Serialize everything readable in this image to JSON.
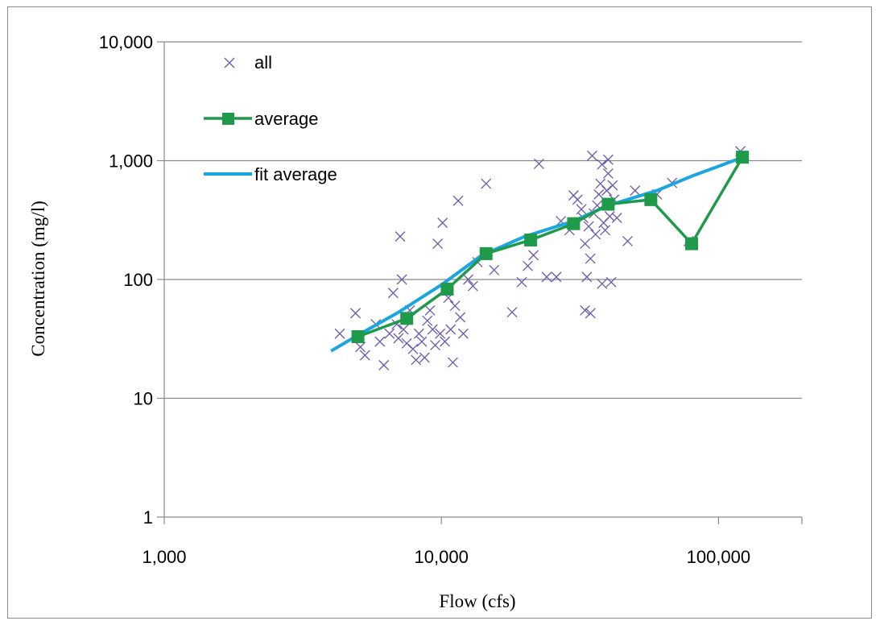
{
  "chart_data": {
    "type": "scatter",
    "xlabel": "Flow (cfs)",
    "ylabel": "Concentration (mg/l)",
    "x_scale": "log",
    "y_scale": "log",
    "xlim": [
      1000,
      200000
    ],
    "ylim": [
      1,
      10000
    ],
    "x_ticks": [
      {
        "value": 1000,
        "label": "1,000"
      },
      {
        "value": 10000,
        "label": "10,000"
      },
      {
        "value": 100000,
        "label": "100,000"
      }
    ],
    "y_ticks": [
      {
        "value": 1,
        "label": "1"
      },
      {
        "value": 10,
        "label": "10"
      },
      {
        "value": 100,
        "label": "100"
      },
      {
        "value": 1000,
        "label": "1,000"
      },
      {
        "value": 10000,
        "label": "10,000"
      }
    ],
    "grid": "horizontal",
    "legend_position": "top-left",
    "series": [
      {
        "name": "all",
        "kind": "scatter",
        "marker": "x",
        "color": "#6a5aad",
        "points": [
          [
            4300,
            35
          ],
          [
            4900,
            52
          ],
          [
            5100,
            27
          ],
          [
            5300,
            23
          ],
          [
            5800,
            42
          ],
          [
            6000,
            30
          ],
          [
            6200,
            19
          ],
          [
            6500,
            35
          ],
          [
            6700,
            77
          ],
          [
            6900,
            42
          ],
          [
            7000,
            32
          ],
          [
            7100,
            230
          ],
          [
            7200,
            100
          ],
          [
            7300,
            38
          ],
          [
            7500,
            29
          ],
          [
            7700,
            55
          ],
          [
            7900,
            26
          ],
          [
            8100,
            21
          ],
          [
            8300,
            35
          ],
          [
            8500,
            30
          ],
          [
            8700,
            22
          ],
          [
            8900,
            45
          ],
          [
            9100,
            55
          ],
          [
            9300,
            38
          ],
          [
            9500,
            28
          ],
          [
            9700,
            200
          ],
          [
            9900,
            35
          ],
          [
            10100,
            300
          ],
          [
            10300,
            30
          ],
          [
            10600,
            70
          ],
          [
            10800,
            38
          ],
          [
            11000,
            20
          ],
          [
            11200,
            60
          ],
          [
            11500,
            460
          ],
          [
            11700,
            48
          ],
          [
            12000,
            35
          ],
          [
            12500,
            100
          ],
          [
            13000,
            88
          ],
          [
            13500,
            140
          ],
          [
            14500,
            640
          ],
          [
            15500,
            120
          ],
          [
            18000,
            53
          ],
          [
            19500,
            95
          ],
          [
            20500,
            130
          ],
          [
            21500,
            160
          ],
          [
            22500,
            940
          ],
          [
            24000,
            105
          ],
          [
            26000,
            105
          ],
          [
            27000,
            310
          ],
          [
            29000,
            260
          ],
          [
            30000,
            510
          ],
          [
            31000,
            470
          ],
          [
            32000,
            390
          ],
          [
            32500,
            330
          ],
          [
            33000,
            200
          ],
          [
            33500,
            105
          ],
          [
            34000,
            280
          ],
          [
            34500,
            150
          ],
          [
            35000,
            1100
          ],
          [
            35500,
            360
          ],
          [
            36000,
            240
          ],
          [
            36500,
            420
          ],
          [
            37000,
            520
          ],
          [
            37500,
            640
          ],
          [
            38000,
            930
          ],
          [
            38500,
            300
          ],
          [
            39000,
            260
          ],
          [
            39500,
            560
          ],
          [
            40000,
            780
          ],
          [
            40500,
            340
          ],
          [
            41000,
            95
          ],
          [
            41500,
            620
          ],
          [
            42000,
            470
          ],
          [
            43000,
            330
          ],
          [
            33000,
            55
          ],
          [
            34500,
            52
          ],
          [
            38000,
            92
          ],
          [
            40000,
            1020
          ],
          [
            47000,
            210
          ],
          [
            50000,
            560
          ],
          [
            60000,
            520
          ],
          [
            68000,
            650
          ],
          [
            78000,
            210
          ],
          [
            120000,
            1200
          ]
        ]
      },
      {
        "name": "average",
        "kind": "line-marker",
        "marker": "square",
        "color": "#1e9a4a",
        "points": [
          [
            5000,
            33
          ],
          [
            7500,
            47
          ],
          [
            10500,
            83
          ],
          [
            14500,
            165
          ],
          [
            21000,
            215
          ],
          [
            30000,
            295
          ],
          [
            40000,
            430
          ],
          [
            57000,
            470
          ],
          [
            80000,
            200
          ],
          [
            122000,
            1070
          ]
        ]
      },
      {
        "name": "fit average",
        "kind": "line",
        "color": "#1aa5e0",
        "points": [
          [
            4000,
            25
          ],
          [
            5000,
            34
          ],
          [
            7000,
            53
          ],
          [
            10000,
            90
          ],
          [
            14000,
            160
          ],
          [
            20000,
            230
          ],
          [
            30000,
            310
          ],
          [
            40000,
            420
          ],
          [
            60000,
            560
          ],
          [
            80000,
            740
          ],
          [
            120000,
            1050
          ]
        ]
      }
    ]
  }
}
